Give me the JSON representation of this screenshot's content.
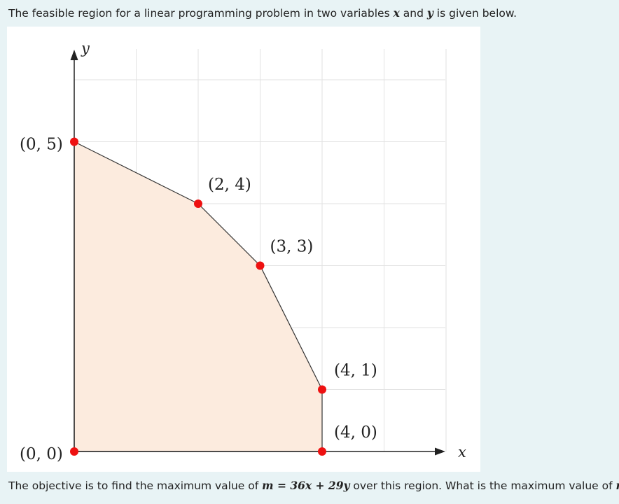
{
  "question": {
    "intro_before": "The feasible region for a linear programming problem in two variables ",
    "var_x": "x",
    "and_word": " and ",
    "var_y": "y",
    "intro_after": " is given below.",
    "closing_before": "The objective is to find the maximum value of ",
    "objective": "m = 36x + 29y",
    "closing_middle": " over this region. What is the maximum value of ",
    "var_m": "m",
    "closing_after": "?"
  },
  "chart_data": {
    "type": "scatter",
    "title": "",
    "xlabel": "x",
    "ylabel": "y",
    "xlim": [
      0,
      6
    ],
    "ylim": [
      0,
      6
    ],
    "grid": true,
    "region_fill": "#fcebde",
    "region_edge": "#333333",
    "point_color": "#ee1111",
    "vertices": [
      {
        "x": 0,
        "y": 0,
        "label": "(0, 0)"
      },
      {
        "x": 0,
        "y": 5,
        "label": "(0, 5)"
      },
      {
        "x": 2,
        "y": 4,
        "label": "(2, 4)"
      },
      {
        "x": 3,
        "y": 3,
        "label": "(3, 3)"
      },
      {
        "x": 4,
        "y": 1,
        "label": "(4, 1)"
      },
      {
        "x": 4,
        "y": 0,
        "label": "(4, 0)"
      }
    ]
  }
}
